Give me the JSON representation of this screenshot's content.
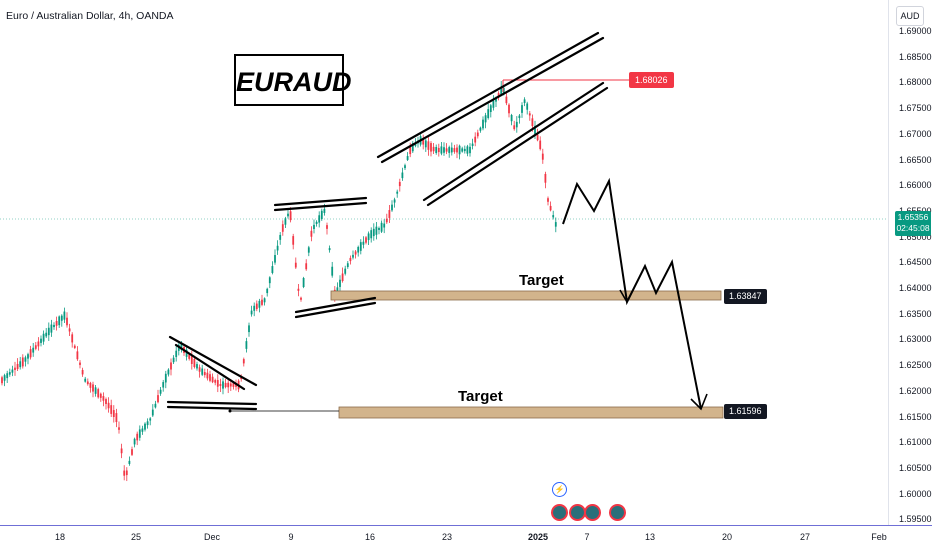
{
  "symbol": {
    "title": "Euro / Australian Dollar, 4h, OANDA"
  },
  "currency": "AUD",
  "chart_title": "EURAUD",
  "annotations": {
    "target_upper": "Target",
    "target_lower": "Target"
  },
  "price_levels": {
    "high_marker": "1.68026",
    "target1": "1.63847",
    "target2": "1.61596"
  },
  "current_price": {
    "price": "1.65356",
    "countdown": "02:45:08"
  },
  "colors": {
    "up": "#089981",
    "down": "#f23645",
    "zone": "#d2b48c",
    "axis_border": "#6f6fd6"
  },
  "y_axis": [
    "1.69000",
    "1.68500",
    "1.68000",
    "1.67500",
    "1.67000",
    "1.66500",
    "1.66000",
    "1.65500",
    "1.65000",
    "1.64500",
    "1.64000",
    "1.63500",
    "1.63000",
    "1.62500",
    "1.62000",
    "1.61500",
    "1.61000",
    "1.60500",
    "1.60000",
    "1.59500"
  ],
  "x_axis": [
    "18",
    "25",
    "Dec",
    "9",
    "16",
    "23",
    "2025",
    "7",
    "13",
    "20",
    "27",
    "Feb"
  ],
  "event_icons": [
    "lightning-icon",
    "event-icon-1",
    "event-icon-2",
    "event-icon-3",
    "event-icon-4"
  ]
}
